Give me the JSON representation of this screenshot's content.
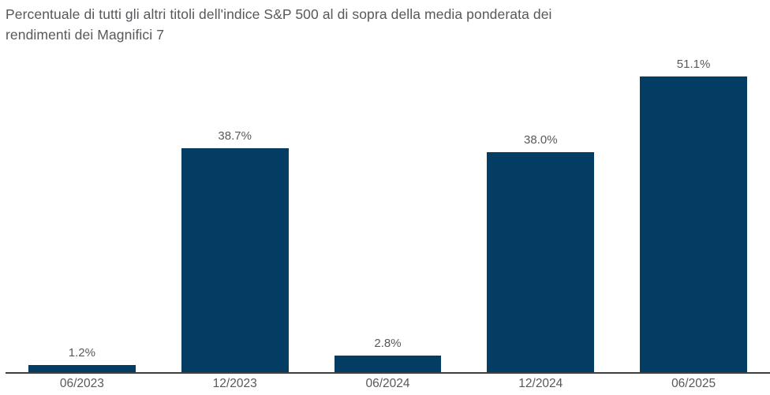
{
  "title": {
    "line1": "Percentuale di tutti gli altri titoli dell'indice S&P 500 al di sopra della media ponderata dei",
    "line2": "rendimenti dei Magnifici 7"
  },
  "chart_data": {
    "type": "bar",
    "title": "Percentuale di tutti gli altri titoli dell'indice S&P 500 al di sopra della media ponderata dei rendimenti dei Magnifici 7",
    "categories": [
      "06/2023",
      "12/2023",
      "06/2024",
      "12/2024",
      "06/2025"
    ],
    "values": [
      1.2,
      38.7,
      2.8,
      38.0,
      51.1
    ],
    "value_labels": [
      "1.2%",
      "38.7%",
      "2.8%",
      "38.0%",
      "51.1%"
    ],
    "xlabel": "",
    "ylabel": "",
    "ylim": [
      0,
      55
    ],
    "grid": false,
    "legend": "none",
    "y_axis_visible": false,
    "colors": {
      "bar": "#043D63",
      "value_label": "#595959",
      "tick_label": "#58585A",
      "title": "#57585B",
      "axis_line": "#404040",
      "background": "#ffffff"
    }
  }
}
